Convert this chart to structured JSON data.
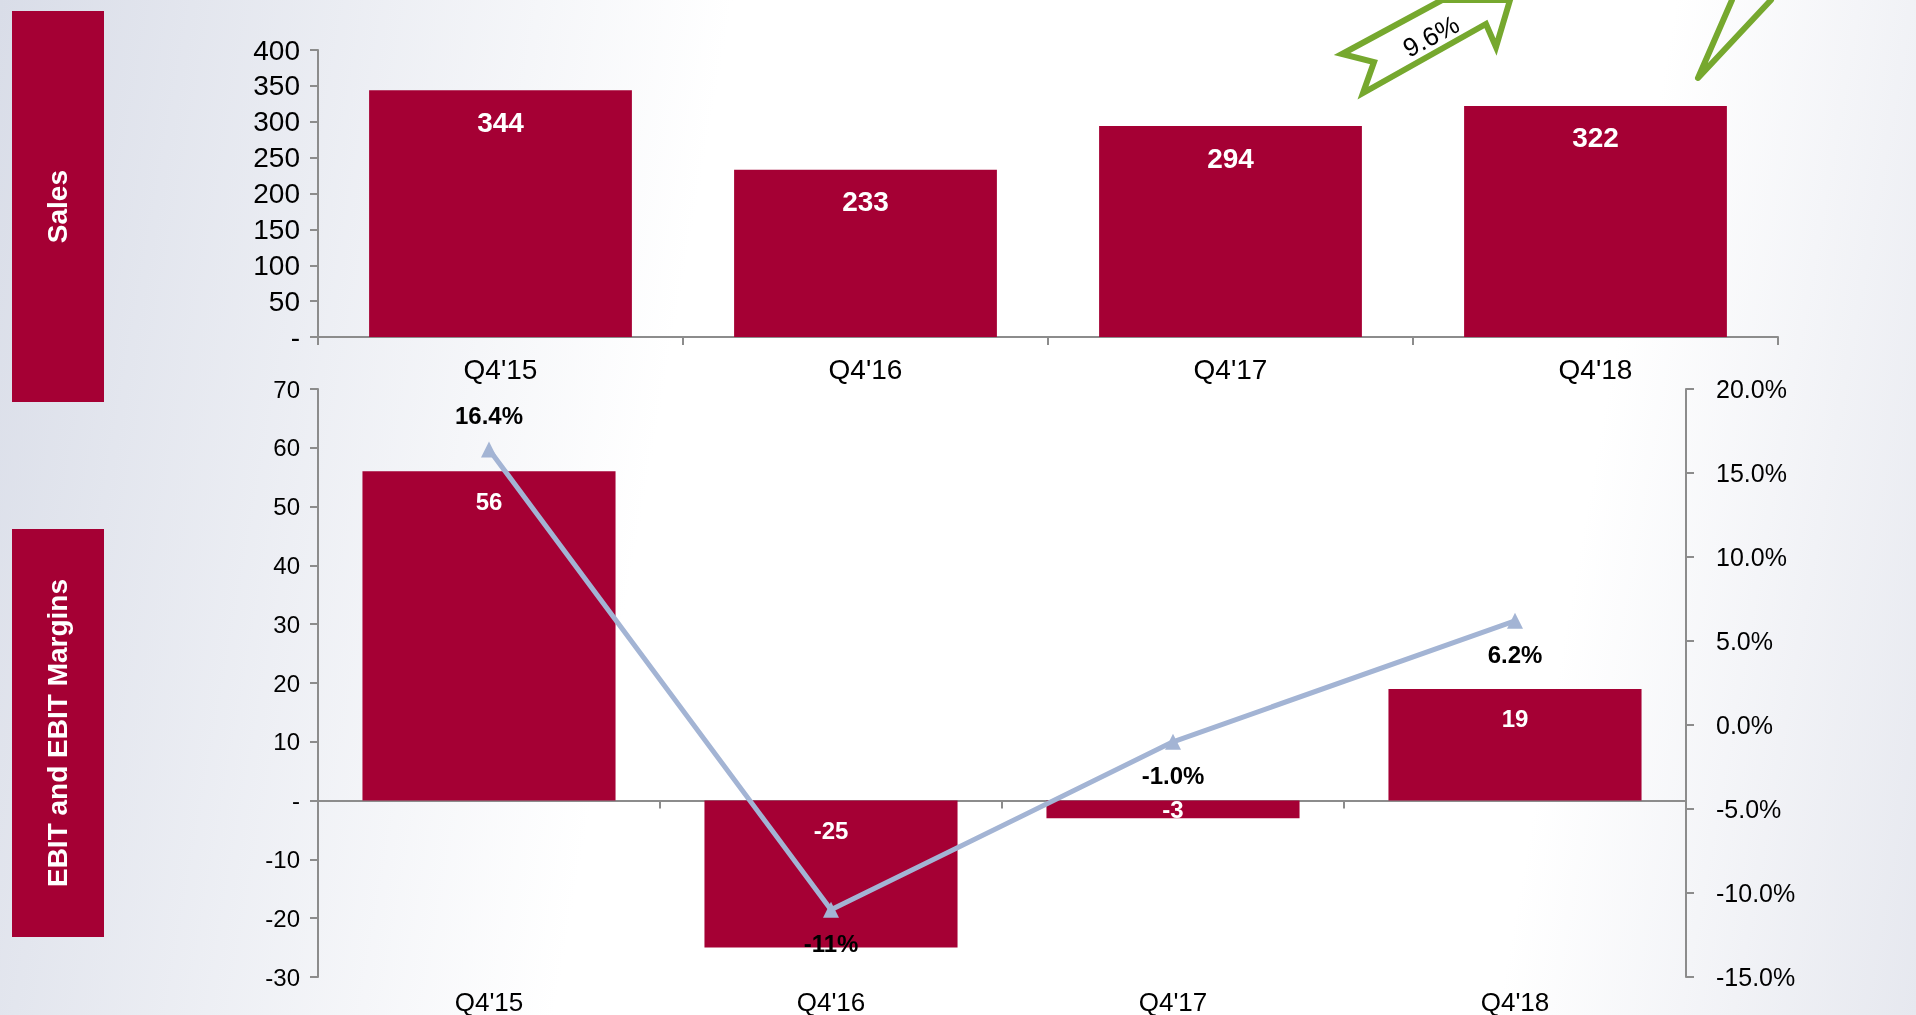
{
  "chart_data": [
    {
      "type": "bar",
      "ylabel": "Sales",
      "categories": [
        "Q4'15",
        "Q4'16",
        "Q4'17",
        "Q4'18"
      ],
      "values": [
        344,
        233,
        294,
        322
      ],
      "color": "#a50034",
      "ylim": [
        0,
        400
      ],
      "yticks": [
        {
          "value": 0,
          "label": "-"
        },
        50,
        100,
        150,
        200,
        250,
        300,
        350,
        400
      ],
      "data_labels": true,
      "annotations": [
        "9.6%"
      ]
    },
    {
      "type": "bar",
      "ylabel": "EBIT and EBIT Margins",
      "categories": [
        "Q4'15",
        "Q4'16",
        "Q4'17",
        "Q4'18"
      ],
      "series": [
        {
          "color": "#a50034",
          "values": [
            56,
            -25,
            -3,
            19
          ]
        },
        {
          "type": "line",
          "axis": "y2",
          "color": "#a3b4d4",
          "values": [
            16.4,
            -11,
            -1.0,
            6.2
          ],
          "value_labels": [
            "16.4%",
            "-11%",
            "-1.0%",
            "6.2%"
          ]
        }
      ],
      "ylim": [
        -30,
        70
      ],
      "yticks": [
        -30,
        -20,
        -10,
        {
          "value": 0,
          "label": "-"
        },
        10,
        20,
        30,
        40,
        50,
        60,
        70
      ],
      "y2lim": [
        -15,
        20
      ],
      "y2ticks": [
        {
          "value": -15,
          "label": "-15.0%"
        },
        {
          "value": -10,
          "label": "-10.0%"
        },
        {
          "value": -5,
          "label": "-5.0%"
        },
        {
          "value": 0,
          "label": "0.0%"
        },
        {
          "value": 5,
          "label": "5.0%"
        },
        {
          "value": 10,
          "label": "10.0%"
        },
        {
          "value": 15,
          "label": "15.0%"
        },
        {
          "value": 20,
          "label": "20.0%"
        }
      ],
      "marker": "triangle",
      "data_labels": true
    }
  ]
}
